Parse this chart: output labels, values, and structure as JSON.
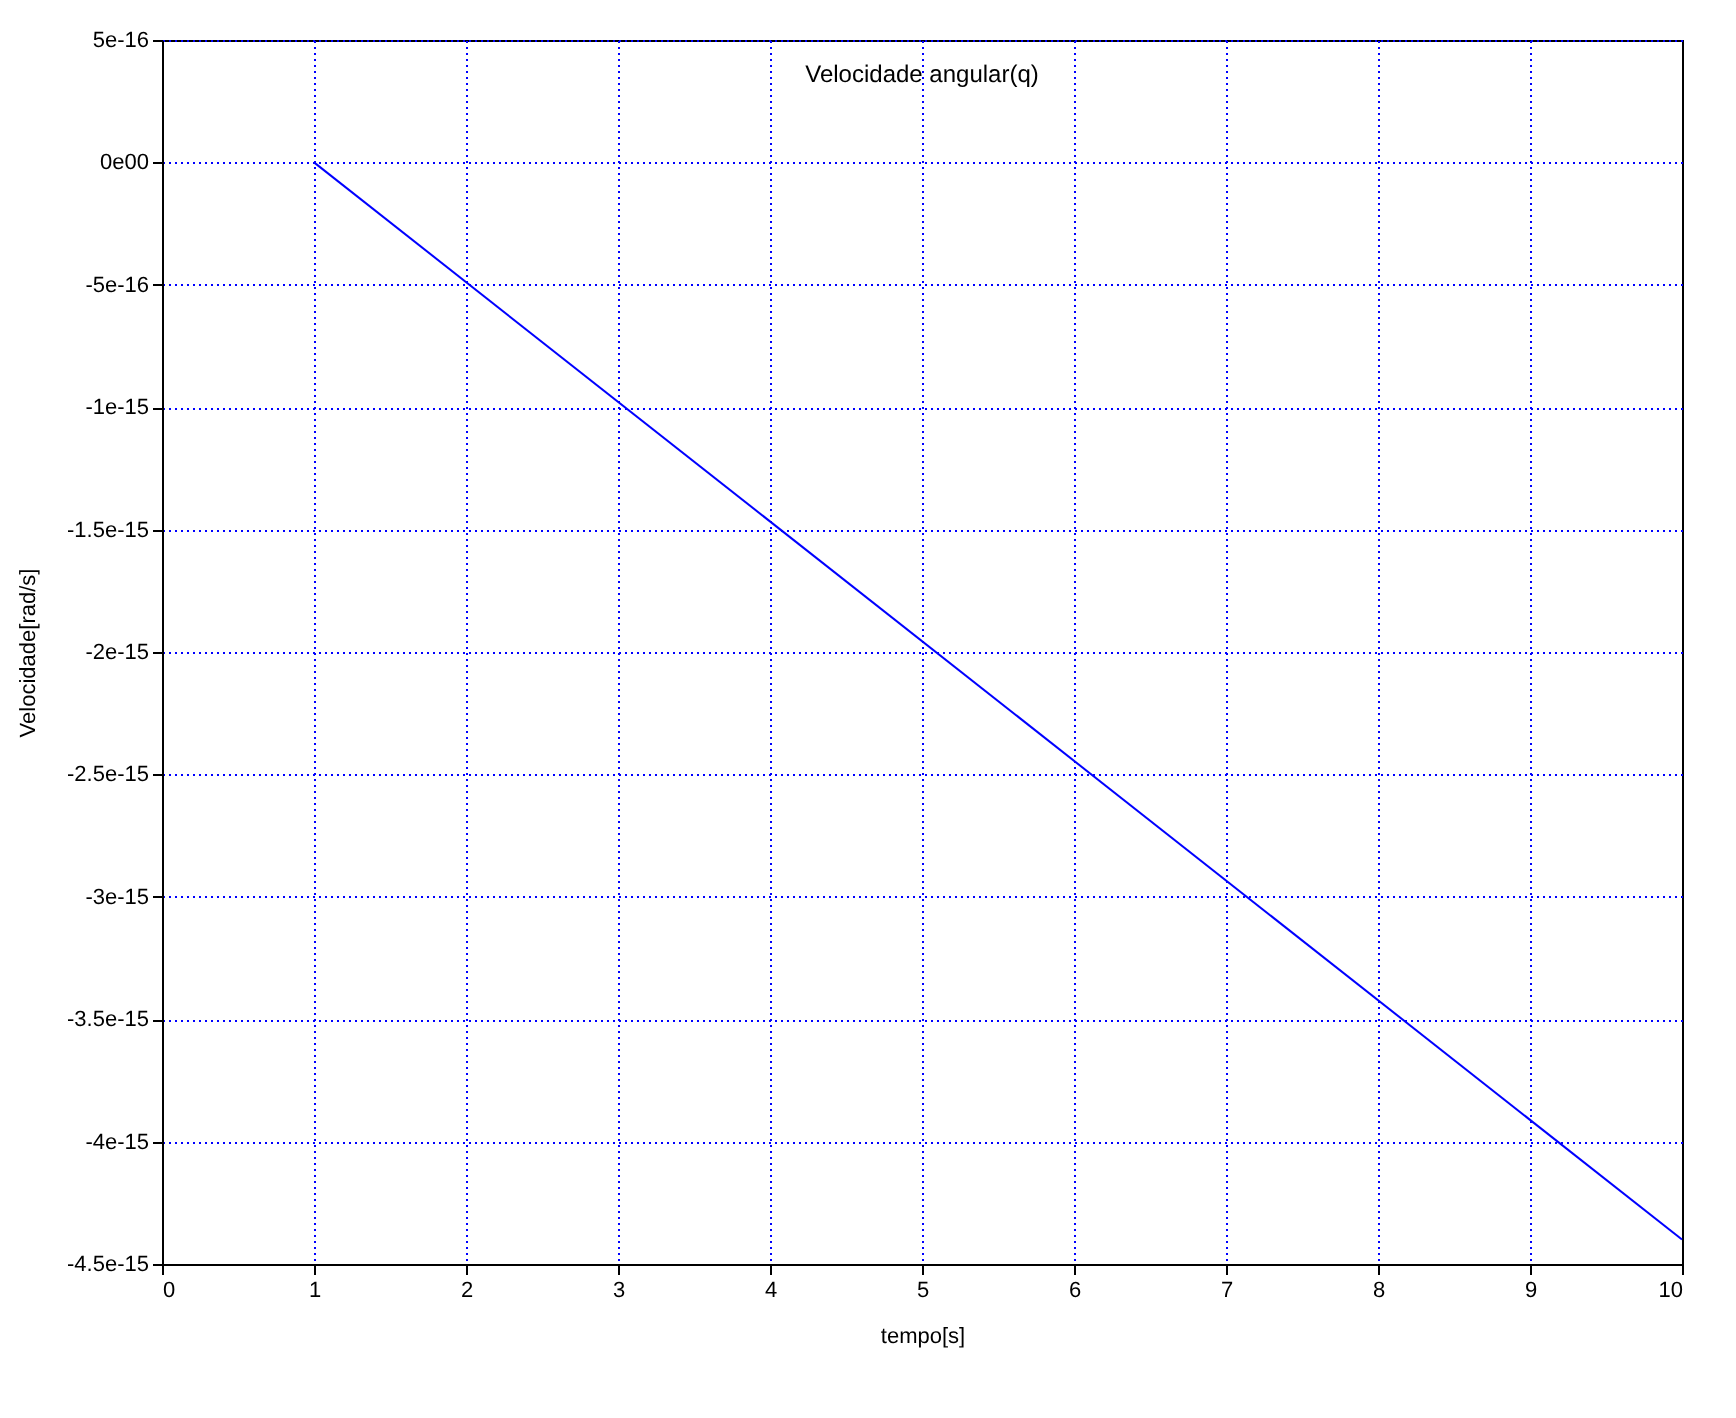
{
  "chart_data": {
    "type": "line",
    "title": "Velocidade angular(q)",
    "xlabel": "tempo[s]",
    "ylabel": "Velocidade[rad/s]",
    "x": [
      1,
      10
    ],
    "series": [
      {
        "color": "#0000ff",
        "values": [
          0,
          -4.4e-15
        ]
      }
    ],
    "xlim": [
      0,
      10
    ],
    "xticks": [
      0,
      1,
      2,
      3,
      4,
      5,
      6,
      7,
      8,
      9,
      10
    ],
    "ylim": [
      -4.5e-15,
      5e-16
    ],
    "yticks": [
      {
        "value": -4.5e-15,
        "label": "-4.5e-15"
      },
      {
        "value": -4e-15,
        "label": "-4e-15"
      },
      {
        "value": -3.5e-15,
        "label": "-3.5e-15"
      },
      {
        "value": -3e-15,
        "label": "-3e-15"
      },
      {
        "value": -2.5e-15,
        "label": "-2.5e-15"
      },
      {
        "value": -2e-15,
        "label": "-2e-15"
      },
      {
        "value": -1.5e-15,
        "label": "-1.5e-15"
      },
      {
        "value": -1e-15,
        "label": "-1e-15"
      },
      {
        "value": -5e-16,
        "label": "-5e-16"
      },
      {
        "value": 0,
        "label": "0e00"
      },
      {
        "value": 5e-16,
        "label": "5e-16"
      }
    ],
    "grid": true,
    "marker": "none",
    "line_style": "solid"
  }
}
